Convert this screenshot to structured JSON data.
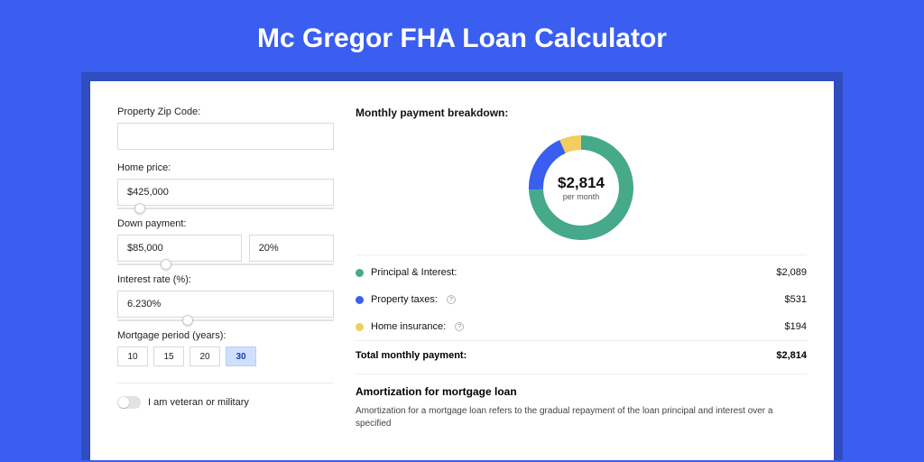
{
  "page": {
    "title": "Mc Gregor FHA Loan Calculator",
    "bg_color": "#3a5ef0",
    "shadow_color": "#2f4dc0",
    "card_color": "#ffffff"
  },
  "form": {
    "zip": {
      "label": "Property Zip Code:",
      "value": ""
    },
    "home_price": {
      "label": "Home price:",
      "value": "$425,000",
      "slider_pos_pct": 8
    },
    "down_payment": {
      "label": "Down payment:",
      "amount": "$85,000",
      "percent": "20%",
      "slider_pos_pct": 20
    },
    "interest_rate": {
      "label": "Interest rate (%):",
      "value": "6.230%",
      "slider_pos_pct": 30
    },
    "mortgage_period": {
      "label": "Mortgage period (years):",
      "options": [
        "10",
        "15",
        "20",
        "30"
      ],
      "selected": "30"
    },
    "veteran": {
      "label": "I am veteran or military",
      "on": false
    }
  },
  "breakdown": {
    "title": "Monthly payment breakdown:",
    "donut": {
      "amount": "$2,814",
      "sub": "per month",
      "segments": [
        {
          "label": "Principal & Interest:",
          "value": "$2,089",
          "color": "#46a98a",
          "pct": 74.2
        },
        {
          "label": "Property taxes:",
          "value": "$531",
          "color": "#3a5ef0",
          "pct": 18.9,
          "info": true
        },
        {
          "label": "Home insurance:",
          "value": "$194",
          "color": "#f0cf60",
          "pct": 6.9,
          "info": true
        }
      ]
    },
    "total": {
      "label": "Total monthly payment:",
      "value": "$2,814"
    }
  },
  "amortization": {
    "title": "Amortization for mortgage loan",
    "body": "Amortization for a mortgage loan refers to the gradual repayment of the loan principal and interest over a specified"
  },
  "styling": {
    "border_color": "#d9d9d9",
    "text_color": "#111111",
    "muted_text": "#555555",
    "active_pill_bg": "#cfe0ff",
    "donut_thickness": 16,
    "donut_radius": 50,
    "font_family": "Arial"
  }
}
